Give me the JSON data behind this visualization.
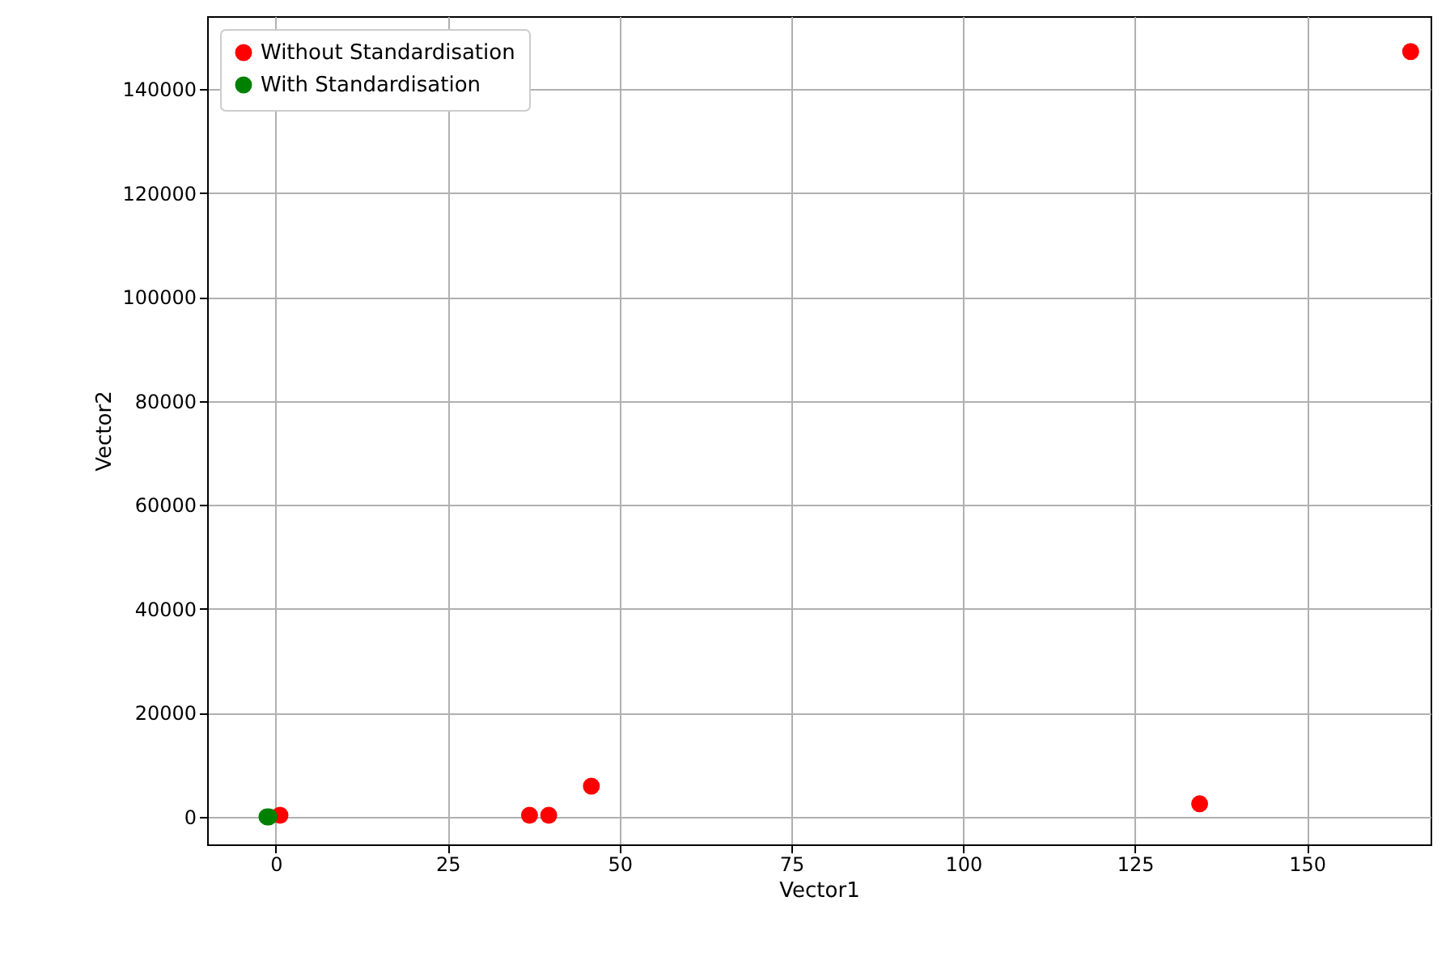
{
  "chart_data": {
    "type": "scatter",
    "xlabel": "Vector1",
    "ylabel": "Vector2",
    "xlim": [
      -10,
      168
    ],
    "ylim": [
      -5300,
      154000
    ],
    "xticks": [
      0,
      25,
      50,
      75,
      100,
      125,
      150
    ],
    "yticks": [
      0,
      20000,
      40000,
      60000,
      80000,
      100000,
      120000,
      140000
    ],
    "grid": true,
    "legend": "top left",
    "marker": "circle",
    "series": [
      {
        "name": "Without Standardisation",
        "color": "#ff0000",
        "x": [
          0.6,
          36.9,
          39.7,
          45.9,
          134.4,
          165.1
        ],
        "values": [
          300,
          300,
          300,
          5900,
          2500,
          147200
        ]
      },
      {
        "name": "With Standardisation",
        "color": "#008000",
        "x": [
          -1.3,
          -1.0
        ],
        "values": [
          0,
          0
        ]
      }
    ]
  }
}
